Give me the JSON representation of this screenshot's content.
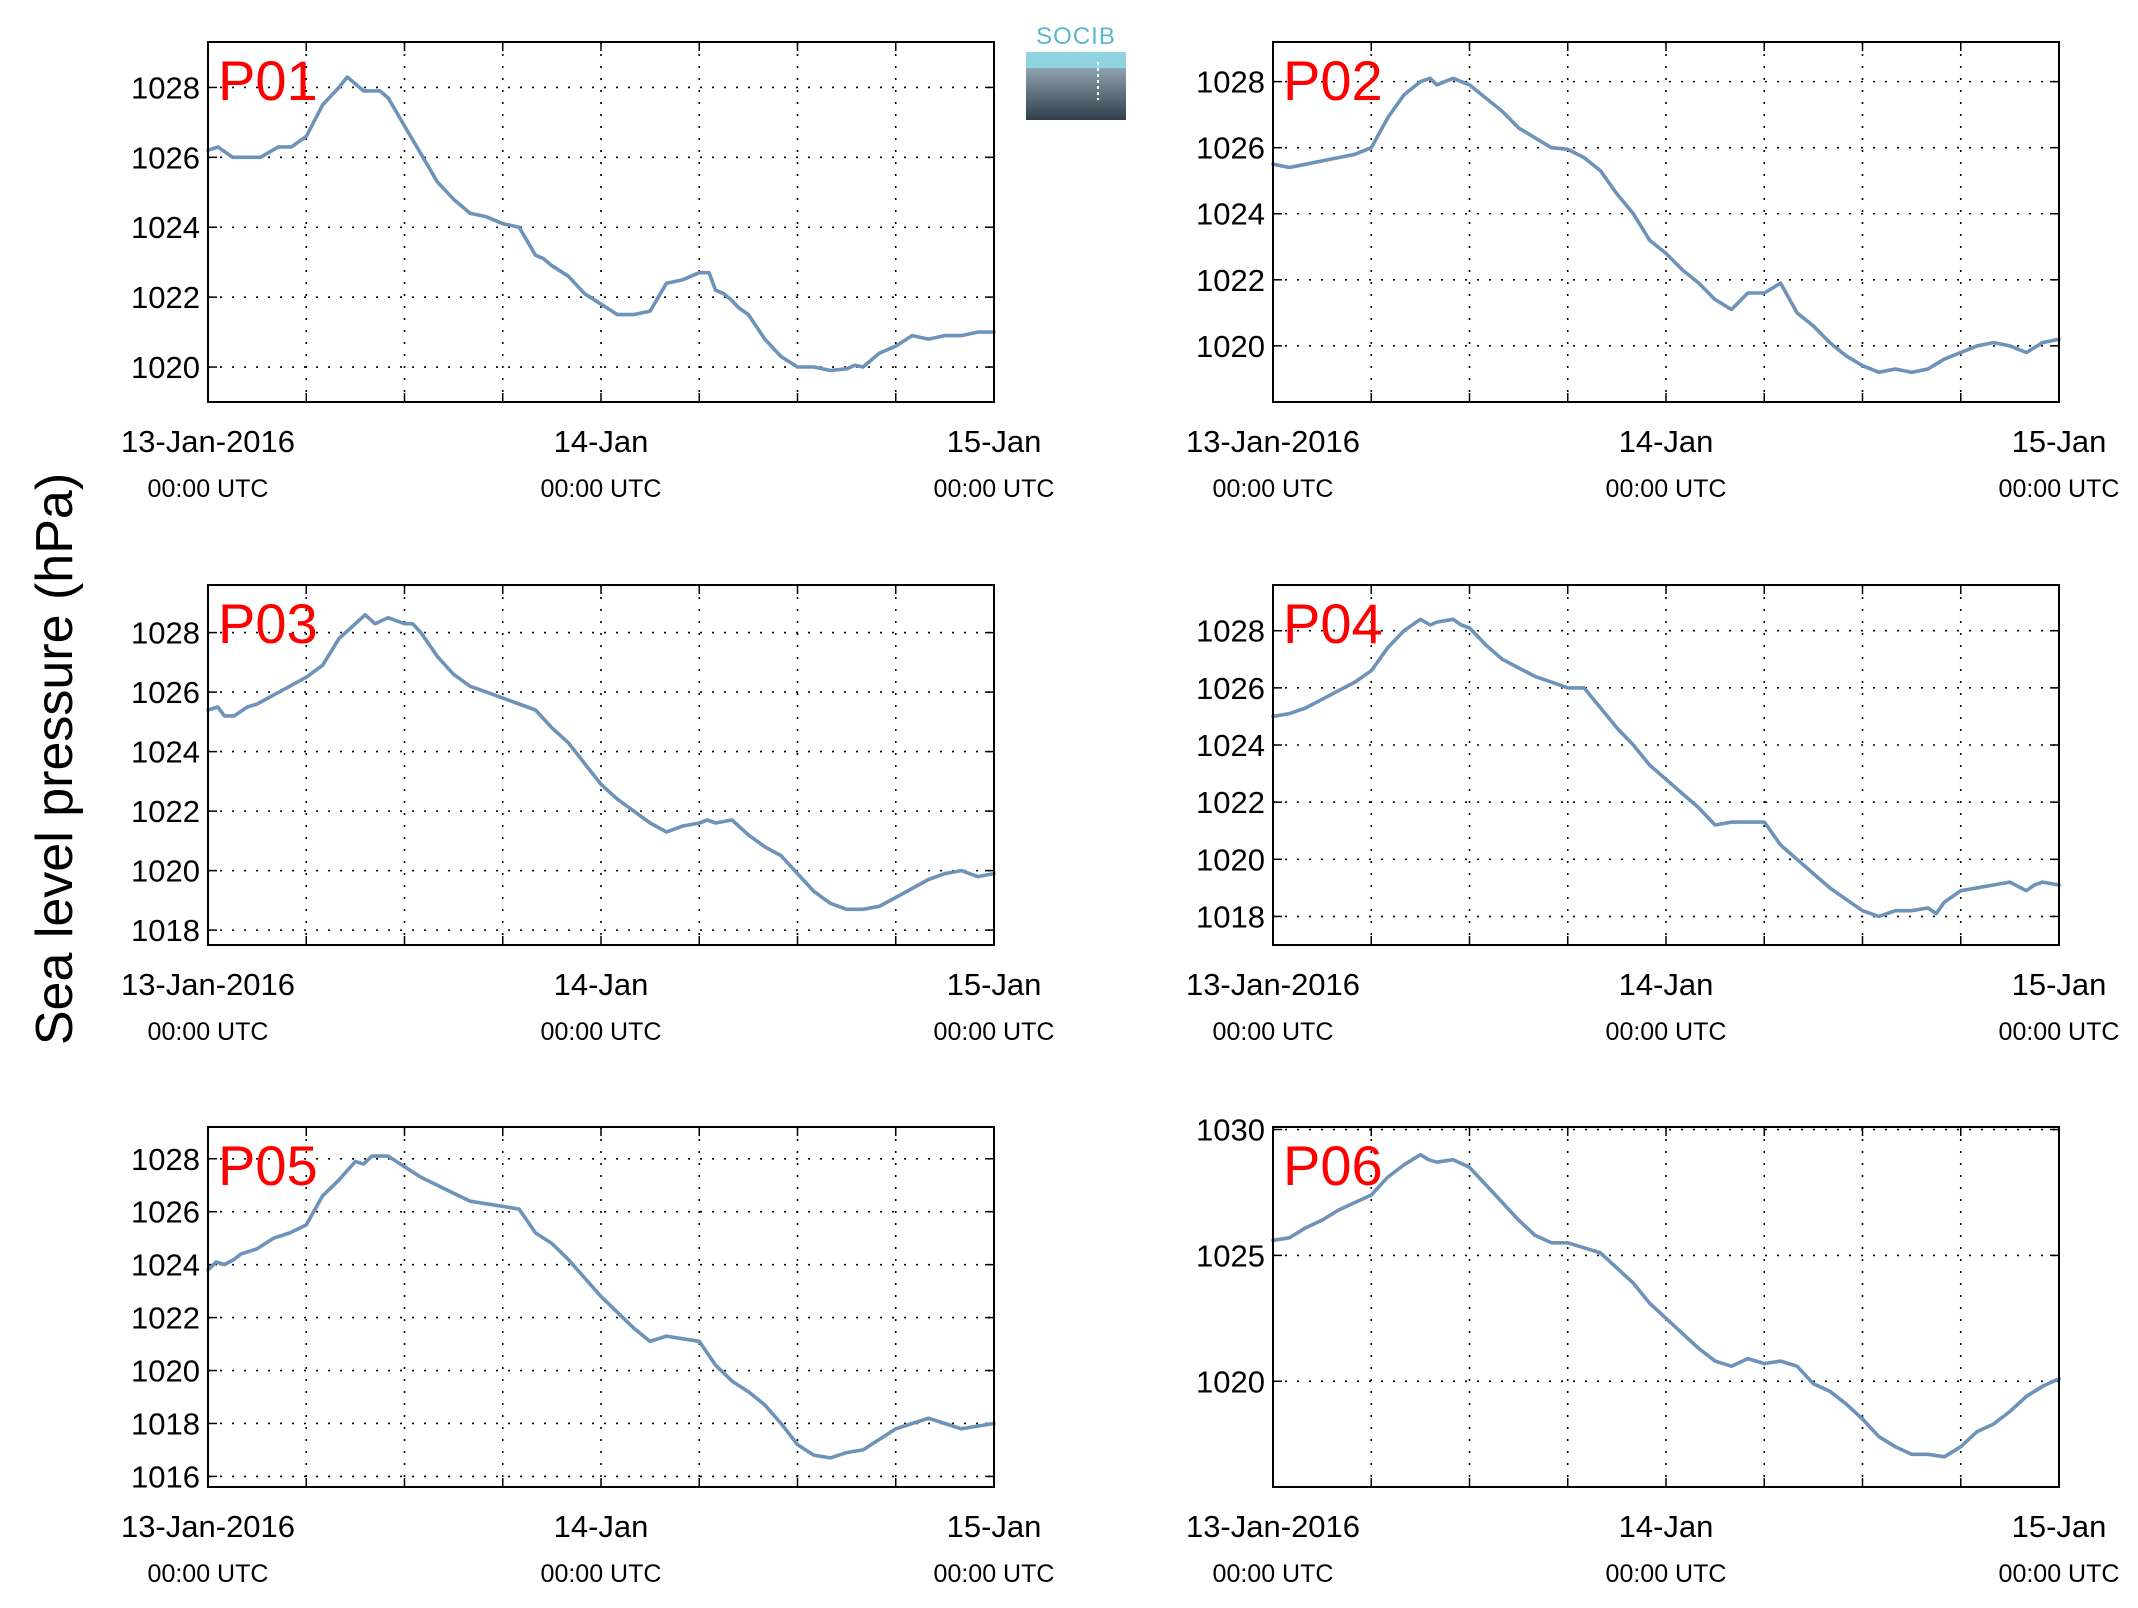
{
  "y_axis_title": "Sea level pressure (hPa)",
  "logo": {
    "text": "SOCIB",
    "text_color": "#5bb8cc",
    "gradient_top": "#8fa2ad",
    "gradient_bottom": "#2e3f4b"
  },
  "style": {
    "line_color": "#6d93b8",
    "panel_label_color": "#ff0000"
  },
  "chart_data": [
    {
      "type": "line",
      "panel_label": "P01",
      "x_ticks": [
        {
          "hour": 0,
          "date": "13-Jan-2016",
          "time": "00:00 UTC"
        },
        {
          "hour": 24,
          "date": "14-Jan",
          "time": "00:00 UTC"
        },
        {
          "hour": 48,
          "date": "15-Jan",
          "time": "00:00 UTC"
        }
      ],
      "xlim": [
        0,
        48
      ],
      "ylim": [
        1019.0,
        1029.3
      ],
      "yticks": [
        1020,
        1022,
        1024,
        1026,
        1028
      ],
      "grid": true,
      "series": [
        {
          "x": [
            0,
            0.6,
            1.5,
            2.4,
            3.2,
            4.3,
            5.1,
            6,
            7,
            8,
            8.5,
            9,
            9.5,
            10,
            10.5,
            11,
            11.5,
            12,
            12.5,
            13,
            14,
            15,
            16,
            17,
            18,
            19,
            20,
            20.5,
            21,
            22,
            23,
            24,
            25,
            26,
            27,
            28,
            29,
            30,
            30.6,
            31,
            31.5,
            32,
            32.4,
            33,
            34,
            35,
            36,
            37,
            38,
            39,
            39.5,
            40,
            40.5,
            41,
            41.5,
            42,
            43,
            44,
            45,
            46,
            47,
            48
          ],
          "y": [
            1026.2,
            1026.3,
            1026.0,
            1026.0,
            1026.0,
            1026.3,
            1026.3,
            1026.6,
            1027.5,
            1028.0,
            1028.3,
            1028.1,
            1027.9,
            1027.9,
            1027.9,
            1027.7,
            1027.3,
            1026.9,
            1026.5,
            1026.1,
            1025.3,
            1024.8,
            1024.4,
            1024.3,
            1024.1,
            1024.0,
            1023.2,
            1023.1,
            1022.9,
            1022.6,
            1022.1,
            1021.8,
            1021.5,
            1021.5,
            1021.6,
            1022.4,
            1022.5,
            1022.7,
            1022.7,
            1022.2,
            1022.1,
            1021.9,
            1021.7,
            1021.5,
            1020.8,
            1020.3,
            1020.0,
            1020.0,
            1019.9,
            1019.95,
            1020.05,
            1020.0,
            1020.2,
            1020.4,
            1020.5,
            1020.6,
            1020.9,
            1020.8,
            1020.9,
            1020.9,
            1021.0,
            1021.0
          ]
        }
      ]
    },
    {
      "type": "line",
      "panel_label": "P02",
      "x_ticks": [
        {
          "hour": 0,
          "date": "13-Jan-2016",
          "time": "00:00 UTC"
        },
        {
          "hour": 24,
          "date": "14-Jan",
          "time": "00:00 UTC"
        },
        {
          "hour": 48,
          "date": "15-Jan",
          "time": "00:00 UTC"
        }
      ],
      "xlim": [
        0,
        48
      ],
      "ylim": [
        1018.3,
        1029.2
      ],
      "yticks": [
        1020,
        1022,
        1024,
        1026,
        1028
      ],
      "grid": true,
      "series": [
        {
          "x": [
            0,
            1,
            2,
            3,
            4,
            5,
            6,
            7,
            8,
            9,
            9.6,
            10,
            11,
            12,
            13,
            14,
            15,
            16,
            17,
            18,
            19,
            20,
            21,
            22,
            23,
            24,
            25,
            26,
            27,
            28,
            29,
            29.5,
            30,
            31,
            32,
            33,
            34,
            35,
            36,
            37,
            38,
            39,
            40,
            41,
            42,
            43,
            44,
            45,
            46,
            47,
            48
          ],
          "y": [
            1025.5,
            1025.4,
            1025.5,
            1025.6,
            1025.7,
            1025.8,
            1026.0,
            1026.9,
            1027.6,
            1028.0,
            1028.1,
            1027.9,
            1028.1,
            1027.9,
            1027.5,
            1027.1,
            1026.6,
            1026.3,
            1026.0,
            1025.95,
            1025.7,
            1025.3,
            1024.6,
            1024.0,
            1023.2,
            1022.8,
            1022.3,
            1021.9,
            1021.4,
            1021.1,
            1021.6,
            1021.6,
            1021.6,
            1021.9,
            1021.0,
            1020.6,
            1020.1,
            1019.7,
            1019.4,
            1019.2,
            1019.3,
            1019.2,
            1019.3,
            1019.6,
            1019.8,
            1020.0,
            1020.1,
            1020.0,
            1019.8,
            1020.1,
            1020.2
          ]
        }
      ]
    },
    {
      "type": "line",
      "panel_label": "P03",
      "x_ticks": [
        {
          "hour": 0,
          "date": "13-Jan-2016",
          "time": "00:00 UTC"
        },
        {
          "hour": 24,
          "date": "14-Jan",
          "time": "00:00 UTC"
        },
        {
          "hour": 48,
          "date": "15-Jan",
          "time": "00:00 UTC"
        }
      ],
      "xlim": [
        0,
        48
      ],
      "ylim": [
        1017.5,
        1029.6
      ],
      "yticks": [
        1018,
        1020,
        1022,
        1024,
        1026,
        1028
      ],
      "grid": true,
      "series": [
        {
          "x": [
            0,
            0.6,
            1,
            1.6,
            2.4,
            3,
            4,
            5,
            6,
            7,
            8,
            9,
            9.6,
            10.2,
            11,
            12,
            12.5,
            13,
            14,
            15,
            16,
            17,
            18,
            19,
            20,
            21,
            22,
            23,
            24,
            25,
            26,
            27,
            28,
            29,
            30,
            30.5,
            31,
            32,
            33,
            34,
            35,
            36,
            37,
            38,
            39,
            40,
            41,
            42,
            43,
            44,
            45,
            46,
            47,
            48
          ],
          "y": [
            1025.4,
            1025.5,
            1025.2,
            1025.2,
            1025.5,
            1025.6,
            1025.9,
            1026.2,
            1026.5,
            1026.9,
            1027.8,
            1028.3,
            1028.6,
            1028.3,
            1028.5,
            1028.3,
            1028.3,
            1028.0,
            1027.2,
            1026.6,
            1026.2,
            1026.0,
            1025.8,
            1025.6,
            1025.4,
            1024.8,
            1024.3,
            1023.6,
            1022.9,
            1022.4,
            1022.0,
            1021.6,
            1021.3,
            1021.5,
            1021.6,
            1021.7,
            1021.6,
            1021.7,
            1021.2,
            1020.8,
            1020.5,
            1019.9,
            1019.3,
            1018.9,
            1018.7,
            1018.7,
            1018.8,
            1019.1,
            1019.4,
            1019.7,
            1019.9,
            1020.0,
            1019.8,
            1019.9
          ]
        }
      ]
    },
    {
      "type": "line",
      "panel_label": "P04",
      "x_ticks": [
        {
          "hour": 0,
          "date": "13-Jan-2016",
          "time": "00:00 UTC"
        },
        {
          "hour": 24,
          "date": "14-Jan",
          "time": "00:00 UTC"
        },
        {
          "hour": 48,
          "date": "15-Jan",
          "time": "00:00 UTC"
        }
      ],
      "xlim": [
        0,
        48
      ],
      "ylim": [
        1017.0,
        1029.6
      ],
      "yticks": [
        1018,
        1020,
        1022,
        1024,
        1026,
        1028
      ],
      "grid": true,
      "series": [
        {
          "x": [
            0,
            1,
            2,
            3,
            4,
            5,
            6,
            7,
            8,
            9,
            9.6,
            10,
            11,
            11.5,
            12,
            13,
            14,
            15,
            16,
            17,
            18,
            19,
            20,
            21,
            22,
            23,
            24,
            25,
            26,
            27,
            28,
            29,
            30,
            31,
            32,
            33,
            34,
            35,
            36,
            37,
            38,
            39,
            40,
            40.5,
            41,
            42,
            43,
            44,
            45,
            46,
            46.5,
            47,
            48
          ],
          "y": [
            1025.0,
            1025.1,
            1025.3,
            1025.6,
            1025.9,
            1026.2,
            1026.6,
            1027.4,
            1028.0,
            1028.4,
            1028.2,
            1028.3,
            1028.4,
            1028.2,
            1028.1,
            1027.5,
            1027.0,
            1026.7,
            1026.4,
            1026.2,
            1026.0,
            1026.0,
            1025.3,
            1024.6,
            1024.0,
            1023.3,
            1022.8,
            1022.3,
            1021.8,
            1021.2,
            1021.3,
            1021.3,
            1021.3,
            1020.5,
            1020.0,
            1019.5,
            1019.0,
            1018.6,
            1018.2,
            1018.0,
            1018.2,
            1018.2,
            1018.3,
            1018.1,
            1018.5,
            1018.9,
            1019.0,
            1019.1,
            1019.2,
            1018.9,
            1019.1,
            1019.2,
            1019.1
          ]
        }
      ]
    },
    {
      "type": "line",
      "panel_label": "P05",
      "x_ticks": [
        {
          "hour": 0,
          "date": "13-Jan-2016",
          "time": "00:00 UTC"
        },
        {
          "hour": 24,
          "date": "14-Jan",
          "time": "00:00 UTC"
        },
        {
          "hour": 48,
          "date": "15-Jan",
          "time": "00:00 UTC"
        }
      ],
      "xlim": [
        0,
        48
      ],
      "ylim": [
        1015.6,
        1029.2
      ],
      "yticks": [
        1016,
        1018,
        1020,
        1022,
        1024,
        1026,
        1028
      ],
      "grid": true,
      "series": [
        {
          "x": [
            0,
            0.5,
            1,
            1.6,
            2,
            3,
            4,
            5,
            6,
            7,
            8,
            9,
            9.5,
            10,
            11,
            12,
            13,
            14,
            15,
            16,
            17,
            18,
            19,
            20,
            21,
            22,
            23,
            24,
            25,
            26,
            27,
            28,
            29,
            30,
            31,
            32,
            33,
            34,
            35,
            36,
            37,
            38,
            39,
            40,
            41,
            42,
            43,
            44,
            45,
            46,
            47,
            48
          ],
          "y": [
            1023.8,
            1024.1,
            1024.0,
            1024.2,
            1024.4,
            1024.6,
            1025.0,
            1025.2,
            1025.5,
            1026.6,
            1027.2,
            1027.9,
            1027.8,
            1028.1,
            1028.1,
            1027.7,
            1027.3,
            1027.0,
            1026.7,
            1026.4,
            1026.3,
            1026.2,
            1026.1,
            1025.2,
            1024.8,
            1024.2,
            1023.5,
            1022.8,
            1022.2,
            1021.6,
            1021.1,
            1021.3,
            1021.2,
            1021.1,
            1020.2,
            1019.6,
            1019.2,
            1018.7,
            1018.0,
            1017.2,
            1016.8,
            1016.7,
            1016.9,
            1017.0,
            1017.4,
            1017.8,
            1018.0,
            1018.2,
            1018.0,
            1017.8,
            1017.9,
            1018.0
          ]
        }
      ]
    },
    {
      "type": "line",
      "panel_label": "P06",
      "x_ticks": [
        {
          "hour": 0,
          "date": "13-Jan-2016",
          "time": "00:00 UTC"
        },
        {
          "hour": 24,
          "date": "14-Jan",
          "time": "00:00 UTC"
        },
        {
          "hour": 48,
          "date": "15-Jan",
          "time": "00:00 UTC"
        }
      ],
      "xlim": [
        0,
        48
      ],
      "ylim": [
        1015.8,
        1030.1
      ],
      "yticks": [
        1020,
        1025,
        1030
      ],
      "grid": true,
      "series": [
        {
          "x": [
            0,
            1,
            2,
            3,
            4,
            5,
            6,
            7,
            8,
            9,
            9.5,
            10,
            11,
            12,
            13,
            14,
            15,
            16,
            17,
            18,
            19,
            20,
            21,
            22,
            23,
            24,
            25,
            26,
            27,
            28,
            29,
            30,
            31,
            32,
            33,
            34,
            35,
            36,
            37,
            38,
            39,
            40,
            41,
            42,
            43,
            44,
            45,
            46,
            47,
            48
          ],
          "y": [
            1025.6,
            1025.7,
            1026.1,
            1026.4,
            1026.8,
            1027.1,
            1027.4,
            1028.1,
            1028.6,
            1029.0,
            1028.8,
            1028.7,
            1028.8,
            1028.5,
            1027.8,
            1027.1,
            1026.4,
            1025.8,
            1025.5,
            1025.5,
            1025.3,
            1025.1,
            1024.5,
            1023.9,
            1023.1,
            1022.5,
            1021.9,
            1021.3,
            1020.8,
            1020.6,
            1020.9,
            1020.7,
            1020.8,
            1020.6,
            1019.9,
            1019.6,
            1019.1,
            1018.5,
            1017.8,
            1017.4,
            1017.1,
            1017.1,
            1017.0,
            1017.4,
            1018.0,
            1018.3,
            1018.8,
            1019.4,
            1019.8,
            1020.1
          ]
        }
      ]
    }
  ]
}
